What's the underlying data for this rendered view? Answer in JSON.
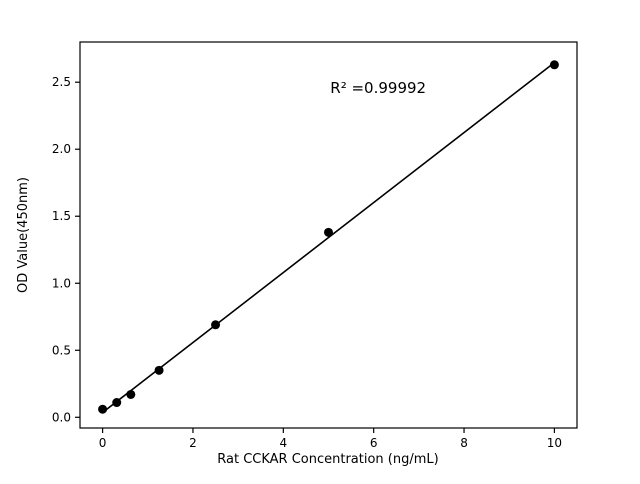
{
  "figure": {
    "background": "#ffffff"
  },
  "chart_data": {
    "type": "scatter",
    "title": "",
    "xlabel": "Rat CCKAR Concentration (ng/mL)",
    "ylabel": "OD Value(450nm)",
    "x": [
      0,
      0.313,
      0.625,
      1.25,
      2.5,
      5,
      10
    ],
    "y": [
      0.06,
      0.11,
      0.17,
      0.35,
      0.69,
      1.38,
      2.63
    ],
    "fit_line": true,
    "annotation": {
      "text": "R² =0.99992",
      "x": 6.1,
      "y": 2.42
    },
    "xlim": [
      -0.5,
      10.5
    ],
    "ylim": [
      -0.08,
      2.8
    ],
    "xticks": [
      0,
      2,
      4,
      6,
      8,
      10
    ],
    "xtick_labels": [
      "0",
      "2",
      "4",
      "6",
      "8",
      "10"
    ],
    "yticks": [
      0.0,
      0.5,
      1.0,
      1.5,
      2.0,
      2.5
    ],
    "ytick_labels": [
      "0.0",
      "0.5",
      "1.0",
      "1.5",
      "2.0",
      "2.5"
    ],
    "grid": false,
    "legend": null,
    "marker_color": "#000000",
    "line_color": "#000000",
    "axes_color": "#000000"
  }
}
